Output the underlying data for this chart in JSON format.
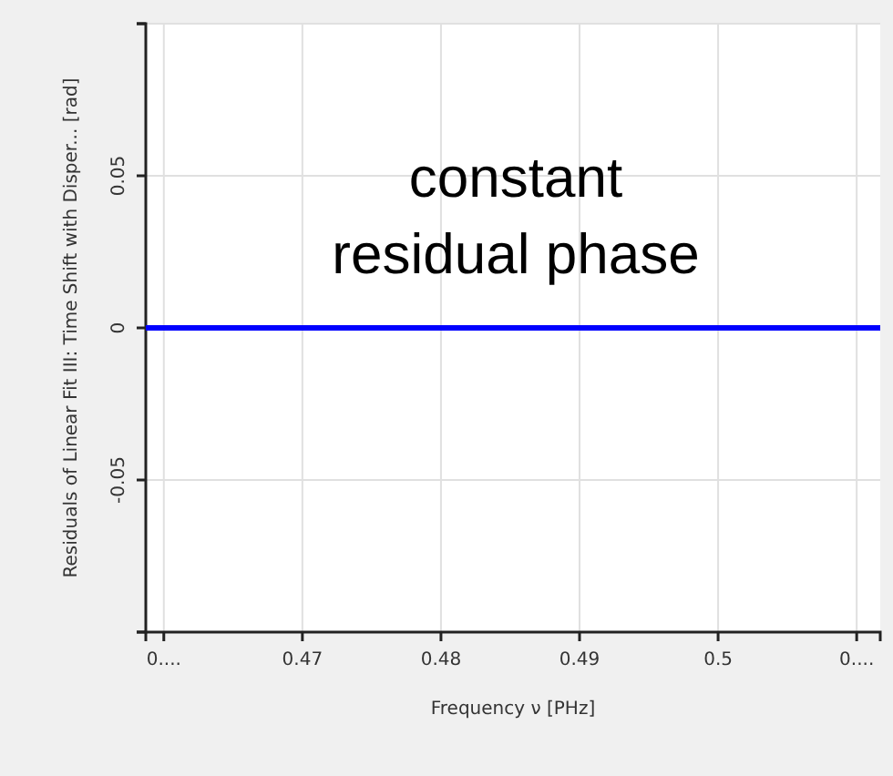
{
  "chart_data": {
    "type": "line",
    "xlabel": "Frequency ν [PHz]",
    "ylabel": "Residuals of Linear Fit III: Time Shift with Disper... [rad]",
    "series": [
      {
        "color": "#0000ff",
        "x": [
          0.4587,
          0.5117
        ],
        "values": [
          0,
          0
        ]
      }
    ],
    "xlim": [
      0.4587,
      0.5117
    ],
    "xticks": [
      {
        "value": 0.46,
        "label": "0...."
      },
      0.47,
      0.48,
      0.49,
      0.5,
      {
        "value": 0.51,
        "label": "0...."
      }
    ],
    "ylim": [
      -0.1,
      0.1
    ],
    "yticks": [
      {
        "value": -0.1,
        "label": null
      },
      -0.05,
      0,
      0.05,
      {
        "value": 0.1,
        "label": null
      }
    ],
    "grid": true,
    "annotations": [
      "constant\nresidual phase"
    ]
  }
}
